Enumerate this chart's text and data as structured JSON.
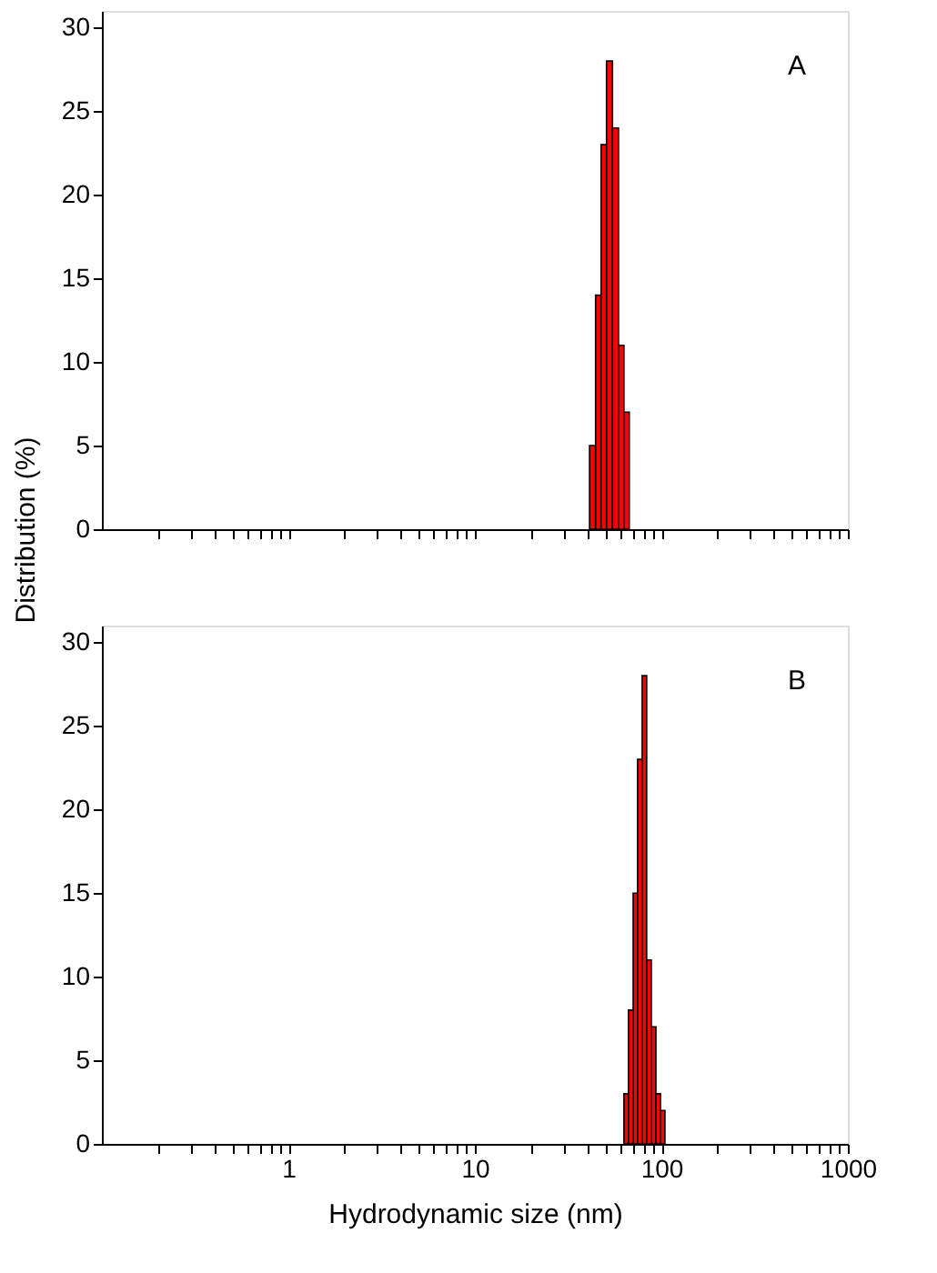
{
  "chart_data": [
    {
      "type": "histogram",
      "ylabel": "Distribution (%)",
      "annotations": [
        "A"
      ],
      "tick_labels": "y",
      "color": "#ff0000",
      "bins": [
        41.2,
        44.4,
        47.5,
        50.8,
        54.7,
        58.9,
        63.0,
        67.3
      ],
      "values": [
        5,
        14,
        23,
        28,
        24,
        11,
        7
      ],
      "xlim": [
        0.1,
        1000
      ],
      "log": "x",
      "ylim": [
        0,
        31
      ],
      "yticks": [
        0,
        5,
        10,
        15,
        20,
        25,
        30
      ],
      "xticks": [
        {
          "value": 0.2,
          "label": null
        },
        {
          "value": 0.3,
          "label": null
        },
        {
          "value": 0.4,
          "label": null
        },
        {
          "value": 0.5,
          "label": null
        },
        {
          "value": 0.6,
          "label": null
        },
        {
          "value": 0.7,
          "label": null
        },
        {
          "value": 0.8,
          "label": null
        },
        {
          "value": 0.9,
          "label": null
        },
        1,
        {
          "value": 2,
          "label": null
        },
        {
          "value": 3,
          "label": null
        },
        {
          "value": 4,
          "label": null
        },
        {
          "value": 5,
          "label": null
        },
        {
          "value": 6,
          "label": null
        },
        {
          "value": 7,
          "label": null
        },
        {
          "value": 8,
          "label": null
        },
        {
          "value": 9,
          "label": null
        },
        10,
        {
          "value": 20,
          "label": null
        },
        {
          "value": 30,
          "label": null
        },
        {
          "value": 40,
          "label": null
        },
        {
          "value": 50,
          "label": null
        },
        {
          "value": 60,
          "label": null
        },
        {
          "value": 70,
          "label": null
        },
        {
          "value": 80,
          "label": null
        },
        {
          "value": 90,
          "label": null
        },
        100,
        {
          "value": 200,
          "label": null
        },
        {
          "value": 300,
          "label": null
        },
        {
          "value": 400,
          "label": null
        },
        {
          "value": 500,
          "label": null
        },
        {
          "value": 600,
          "label": null
        },
        {
          "value": 700,
          "label": null
        },
        {
          "value": 800,
          "label": null
        },
        {
          "value": 900,
          "label": null
        },
        1000
      ]
    },
    {
      "type": "histogram",
      "xlabel": "Hydrodynamic size (nm)",
      "annotations": [
        "B"
      ],
      "color": "#ff0000",
      "bins": [
        63.0,
        66.6,
        70.6,
        74.6,
        78.9,
        83.4,
        88.3,
        93.5,
        98.9,
        104.5
      ],
      "values": [
        3,
        8,
        15,
        23,
        28,
        11,
        7,
        3,
        2
      ],
      "xlim": [
        0.1,
        1000
      ],
      "log": "x",
      "ylim": [
        0,
        31
      ],
      "yticks": [
        0,
        5,
        10,
        15,
        20,
        25,
        30
      ],
      "xticks": [
        {
          "value": 0.2,
          "label": null
        },
        {
          "value": 0.3,
          "label": null
        },
        {
          "value": 0.4,
          "label": null
        },
        {
          "value": 0.5,
          "label": null
        },
        {
          "value": 0.6,
          "label": null
        },
        {
          "value": 0.7,
          "label": null
        },
        {
          "value": 0.8,
          "label": null
        },
        {
          "value": 0.9,
          "label": null
        },
        1,
        {
          "value": 2,
          "label": null
        },
        {
          "value": 3,
          "label": null
        },
        {
          "value": 4,
          "label": null
        },
        {
          "value": 5,
          "label": null
        },
        {
          "value": 6,
          "label": null
        },
        {
          "value": 7,
          "label": null
        },
        {
          "value": 8,
          "label": null
        },
        {
          "value": 9,
          "label": null
        },
        10,
        {
          "value": 20,
          "label": null
        },
        {
          "value": 30,
          "label": null
        },
        {
          "value": 40,
          "label": null
        },
        {
          "value": 50,
          "label": null
        },
        {
          "value": 60,
          "label": null
        },
        {
          "value": 70,
          "label": null
        },
        {
          "value": 80,
          "label": null
        },
        {
          "value": 90,
          "label": null
        },
        100,
        {
          "value": 200,
          "label": null
        },
        {
          "value": 300,
          "label": null
        },
        {
          "value": 400,
          "label": null
        },
        {
          "value": 500,
          "label": null
        },
        {
          "value": 600,
          "label": null
        },
        {
          "value": 700,
          "label": null
        },
        {
          "value": 800,
          "label": null
        },
        {
          "value": 900,
          "label": null
        },
        1000
      ]
    }
  ]
}
